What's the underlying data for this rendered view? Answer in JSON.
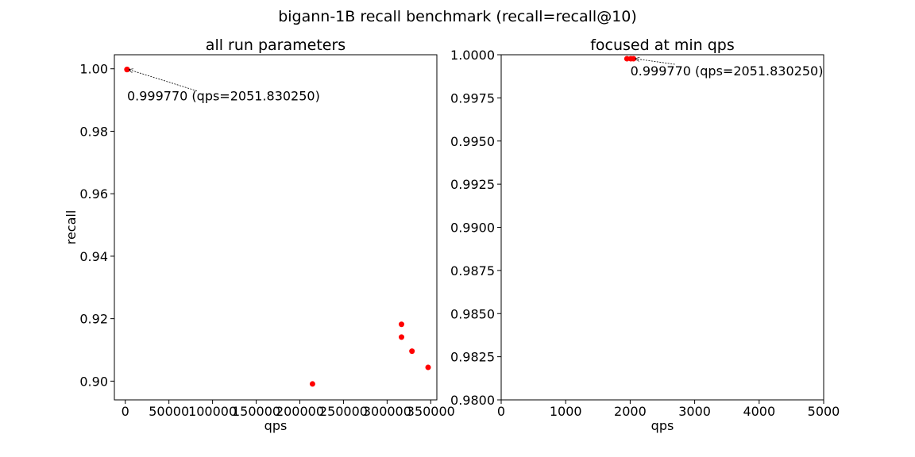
{
  "figure": {
    "suptitle": "bigann-1B recall benchmark (recall=recall@10)"
  },
  "chart_data": [
    {
      "type": "scatter",
      "title": "all run parameters",
      "xlabel": "qps",
      "ylabel": "recall",
      "xlim": [
        -12500,
        357000
      ],
      "ylim": [
        0.894,
        1.0045
      ],
      "xticks": [
        0,
        50000,
        100000,
        150000,
        200000,
        250000,
        300000,
        350000
      ],
      "xtick_labels": [
        "0",
        "50000",
        "100000",
        "150000",
        "200000",
        "250000",
        "300000",
        "350000"
      ],
      "yticks": [
        0.9,
        0.92,
        0.94,
        0.96,
        0.98,
        1.0
      ],
      "ytick_labels": [
        "0.90",
        "0.92",
        "0.94",
        "0.96",
        "0.98",
        "1.00"
      ],
      "grid": false,
      "color": "#ff0000",
      "points": [
        {
          "x": 1950,
          "y": 0.99977
        },
        {
          "x": 2010,
          "y": 0.99977
        },
        {
          "x": 2051.83,
          "y": 0.99977
        },
        {
          "x": 214500,
          "y": 0.8991
        },
        {
          "x": 316500,
          "y": 0.9182
        },
        {
          "x": 316500,
          "y": 0.9141
        },
        {
          "x": 328500,
          "y": 0.9096
        },
        {
          "x": 347000,
          "y": 0.9044
        }
      ],
      "annotation": {
        "text": "0.999770 (qps=2051.830250)",
        "x": 2051.83,
        "y": 0.99977
      }
    },
    {
      "type": "scatter",
      "title": "focused at min qps",
      "xlabel": "qps",
      "ylabel": "",
      "xlim": [
        0,
        5000
      ],
      "ylim": [
        0.98,
        1.0
      ],
      "xticks": [
        0,
        1000,
        2000,
        3000,
        4000,
        5000
      ],
      "xtick_labels": [
        "0",
        "1000",
        "2000",
        "3000",
        "4000",
        "5000"
      ],
      "yticks": [
        0.98,
        0.9825,
        0.985,
        0.9875,
        0.99,
        0.9925,
        0.995,
        0.9975,
        1.0
      ],
      "ytick_labels": [
        "0.9800",
        "0.9825",
        "0.9850",
        "0.9875",
        "0.9900",
        "0.9925",
        "0.9950",
        "0.9975",
        "1.0000"
      ],
      "grid": false,
      "color": "#ff0000",
      "points": [
        {
          "x": 1950,
          "y": 0.99977
        },
        {
          "x": 2010,
          "y": 0.99977
        },
        {
          "x": 2051.83,
          "y": 0.99977
        }
      ],
      "annotation": {
        "text": "0.999770 (qps=2051.830250)",
        "x": 2051.83,
        "y": 0.99977
      }
    }
  ]
}
